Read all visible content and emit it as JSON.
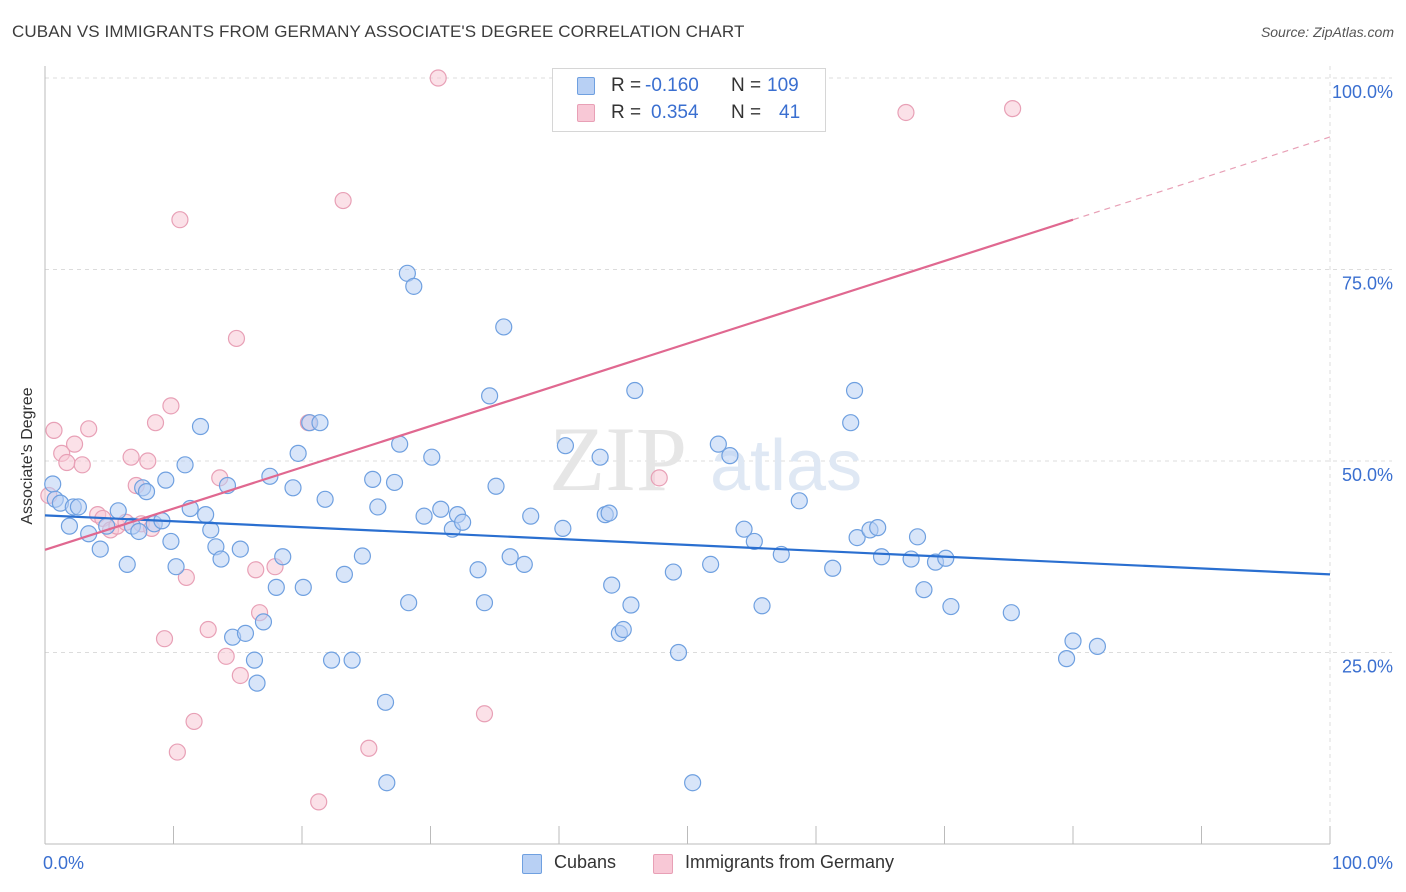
{
  "header": {
    "title": "CUBAN VS IMMIGRANTS FROM GERMANY ASSOCIATE'S DEGREE CORRELATION CHART",
    "source": "Source: ZipAtlas.com"
  },
  "watermark": {
    "part1": "ZIP",
    "part2": "atlas"
  },
  "stats": {
    "rows": [
      {
        "r_label": "R =",
        "r_value": "-0.160",
        "n_label": "N =",
        "n_value": "109"
      },
      {
        "r_label": "R =",
        "r_value": "0.354",
        "n_label": "N =",
        "n_value": "41"
      }
    ]
  },
  "legend": {
    "items": [
      {
        "label": "Cubans"
      },
      {
        "label": "Immigrants from Germany"
      }
    ]
  },
  "chart_data": {
    "type": "scatter",
    "title": "CUBAN VS IMMIGRANTS FROM GERMANY ASSOCIATE'S DEGREE CORRELATION CHART",
    "xlabel": "",
    "ylabel": "Associate's Degree",
    "xlim": [
      0,
      100
    ],
    "ylim": [
      0,
      100
    ],
    "x_ticks": [
      "0.0%",
      "100.0%"
    ],
    "y_ticks": [
      "25.0%",
      "50.0%",
      "75.0%",
      "100.0%"
    ],
    "y_tick_values": [
      25,
      50,
      75,
      100
    ],
    "grid": true,
    "legend_position": "bottom",
    "series": [
      {
        "name": "Cubans",
        "color": "#6fa0e0",
        "fill": "#b8d0f4",
        "r": "-0.160",
        "n": "109",
        "trend": {
          "x0": 0,
          "y0": 42.9,
          "x1": 100,
          "y1": 35.2
        },
        "points": [
          [
            0.6,
            47
          ],
          [
            0.8,
            45
          ],
          [
            1.2,
            44.5
          ],
          [
            1.9,
            41.5
          ],
          [
            2.2,
            44
          ],
          [
            2.6,
            44
          ],
          [
            3.4,
            40.5
          ],
          [
            4.3,
            38.5
          ],
          [
            4.8,
            41.5
          ],
          [
            5.7,
            43.5
          ],
          [
            6.4,
            36.5
          ],
          [
            6.8,
            41.5
          ],
          [
            7.3,
            40.8
          ],
          [
            7.6,
            46.5
          ],
          [
            7.9,
            46
          ],
          [
            8.5,
            41.8
          ],
          [
            9.1,
            42.2
          ],
          [
            9.4,
            47.5
          ],
          [
            9.8,
            39.5
          ],
          [
            10.2,
            36.2
          ],
          [
            10.9,
            49.5
          ],
          [
            11.3,
            43.8
          ],
          [
            12.1,
            54.5
          ],
          [
            12.5,
            43
          ],
          [
            12.9,
            41
          ],
          [
            13.3,
            38.8
          ],
          [
            13.7,
            37.2
          ],
          [
            14.2,
            46.8
          ],
          [
            14.6,
            27
          ],
          [
            15.2,
            38.5
          ],
          [
            15.6,
            27.5
          ],
          [
            16.3,
            24
          ],
          [
            16.5,
            21
          ],
          [
            17,
            29
          ],
          [
            17.5,
            48
          ],
          [
            18,
            33.5
          ],
          [
            18.5,
            37.5
          ],
          [
            19.3,
            46.5
          ],
          [
            19.7,
            51
          ],
          [
            20.1,
            33.5
          ],
          [
            20.6,
            55
          ],
          [
            21.4,
            55
          ],
          [
            21.8,
            45
          ],
          [
            22.3,
            24
          ],
          [
            23.3,
            35.2
          ],
          [
            23.9,
            24
          ],
          [
            24.7,
            37.6
          ],
          [
            25.5,
            47.6
          ],
          [
            25.9,
            44
          ],
          [
            26.5,
            18.5
          ],
          [
            26.6,
            8
          ],
          [
            27.2,
            47.2
          ],
          [
            27.6,
            52.2
          ],
          [
            28.2,
            74.5
          ],
          [
            28.7,
            72.8
          ],
          [
            28.3,
            31.5
          ],
          [
            29.5,
            42.8
          ],
          [
            30.1,
            50.5
          ],
          [
            30.8,
            43.7
          ],
          [
            31.7,
            41.1
          ],
          [
            32.1,
            43
          ],
          [
            32.5,
            42
          ],
          [
            33.7,
            35.8
          ],
          [
            34.2,
            31.5
          ],
          [
            34.6,
            58.5
          ],
          [
            35.1,
            46.7
          ],
          [
            35.7,
            67.5
          ],
          [
            36.2,
            37.5
          ],
          [
            37.3,
            36.5
          ],
          [
            37.8,
            42.8
          ],
          [
            40.3,
            41.2
          ],
          [
            40.5,
            52
          ],
          [
            43.2,
            50.5
          ],
          [
            43.6,
            43
          ],
          [
            43.9,
            43.2
          ],
          [
            44.1,
            33.8
          ],
          [
            44.7,
            27.5
          ],
          [
            45,
            28
          ],
          [
            45.6,
            31.2
          ],
          [
            45.9,
            59.2
          ],
          [
            48.9,
            35.5
          ],
          [
            49.3,
            25
          ],
          [
            50.4,
            8
          ],
          [
            51.8,
            36.5
          ],
          [
            52.4,
            52.2
          ],
          [
            53.3,
            50.7
          ],
          [
            54.4,
            41.1
          ],
          [
            55.2,
            39.5
          ],
          [
            55.8,
            31.1
          ],
          [
            57.3,
            37.8
          ],
          [
            58.7,
            44.8
          ],
          [
            61.3,
            36
          ],
          [
            62.7,
            55
          ],
          [
            63,
            59.2
          ],
          [
            63.2,
            40
          ],
          [
            64.2,
            41
          ],
          [
            64.8,
            41.3
          ],
          [
            65.1,
            37.5
          ],
          [
            67.4,
            37.2
          ],
          [
            67.9,
            40.1
          ],
          [
            68.4,
            33.2
          ],
          [
            69.3,
            36.8
          ],
          [
            70.1,
            37.3
          ],
          [
            70.5,
            31
          ],
          [
            75.2,
            30.2
          ],
          [
            79.5,
            24.2
          ],
          [
            80,
            26.5
          ],
          [
            81.9,
            25.8
          ]
        ]
      },
      {
        "name": "Immigrants from Germany",
        "color": "#e8a0b6",
        "fill": "#f8c8d6",
        "r": "0.354",
        "n": "41",
        "trend": {
          "x0": 0,
          "y0": 38.4,
          "x1": 80,
          "y1": 81.5,
          "dash_to_x": 100,
          "dash_to_y": 92.3
        },
        "points": [
          [
            0.3,
            45.5
          ],
          [
            0.7,
            54
          ],
          [
            1.3,
            51
          ],
          [
            1.7,
            49.8
          ],
          [
            2.3,
            52.2
          ],
          [
            2.9,
            49.5
          ],
          [
            3.4,
            54.2
          ],
          [
            4.1,
            43
          ],
          [
            4.5,
            42.5
          ],
          [
            5.1,
            41
          ],
          [
            5.6,
            41.5
          ],
          [
            6.3,
            42
          ],
          [
            6.7,
            50.5
          ],
          [
            7.1,
            46.8
          ],
          [
            7.5,
            41.8
          ],
          [
            8,
            50
          ],
          [
            8.3,
            41.2
          ],
          [
            8.6,
            55
          ],
          [
            9.3,
            26.8
          ],
          [
            9.8,
            57.2
          ],
          [
            10.3,
            12
          ],
          [
            10.5,
            81.5
          ],
          [
            11,
            34.8
          ],
          [
            11.6,
            16
          ],
          [
            12.7,
            28
          ],
          [
            13.6,
            47.8
          ],
          [
            14.1,
            24.5
          ],
          [
            14.9,
            66
          ],
          [
            15.2,
            22
          ],
          [
            16.4,
            35.8
          ],
          [
            16.7,
            30.2
          ],
          [
            17.9,
            36.2
          ],
          [
            20.5,
            55
          ],
          [
            21.3,
            5.5
          ],
          [
            23.2,
            84
          ],
          [
            25.2,
            12.5
          ],
          [
            30.6,
            100
          ],
          [
            34.2,
            17
          ],
          [
            47.8,
            47.8
          ],
          [
            67,
            95.5
          ],
          [
            75.3,
            96
          ]
        ]
      }
    ]
  }
}
